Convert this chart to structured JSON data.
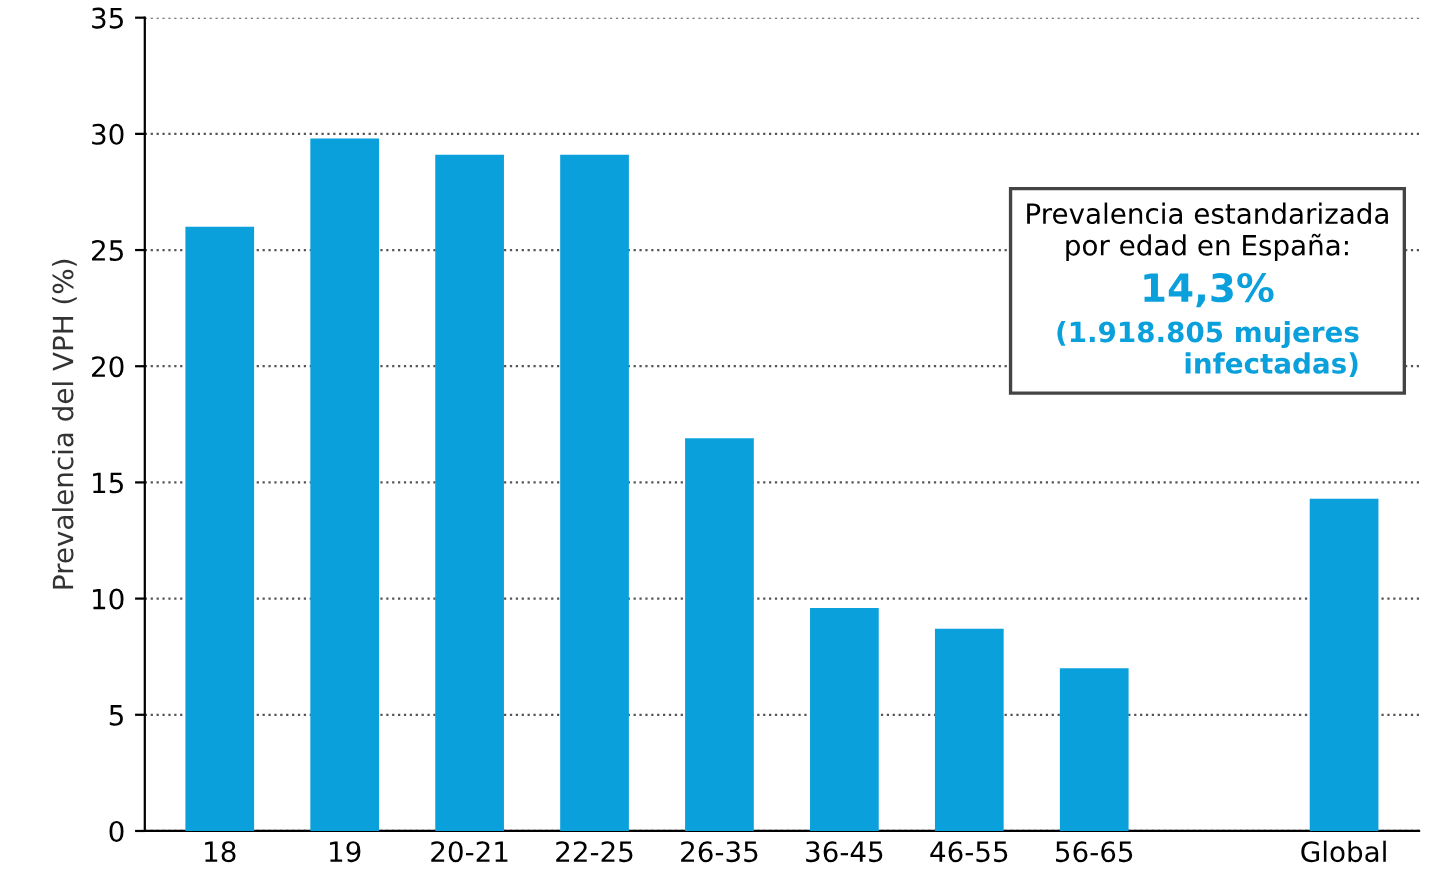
{
  "chart_data": {
    "type": "bar",
    "ylabel": "Prevalencia del VPH (%)",
    "categories": [
      "18",
      "19",
      "20-21",
      "22-25",
      "26-35",
      "36-45",
      "46-55",
      "56-65",
      null,
      "Global"
    ],
    "values": [
      26.0,
      29.8,
      29.1,
      29.1,
      16.9,
      9.6,
      8.7,
      7.0,
      null,
      14.3
    ],
    "color": "#0aa0dc",
    "ylim": [
      0,
      35
    ],
    "yticks": [
      0,
      5,
      10,
      15,
      20,
      25,
      30,
      35
    ],
    "grid": "y",
    "annotations": [
      "Prevalencia estandarizada\npor edad en España:",
      "14,3%",
      "(1.918.805 mujeres\ninfectadas)"
    ]
  }
}
